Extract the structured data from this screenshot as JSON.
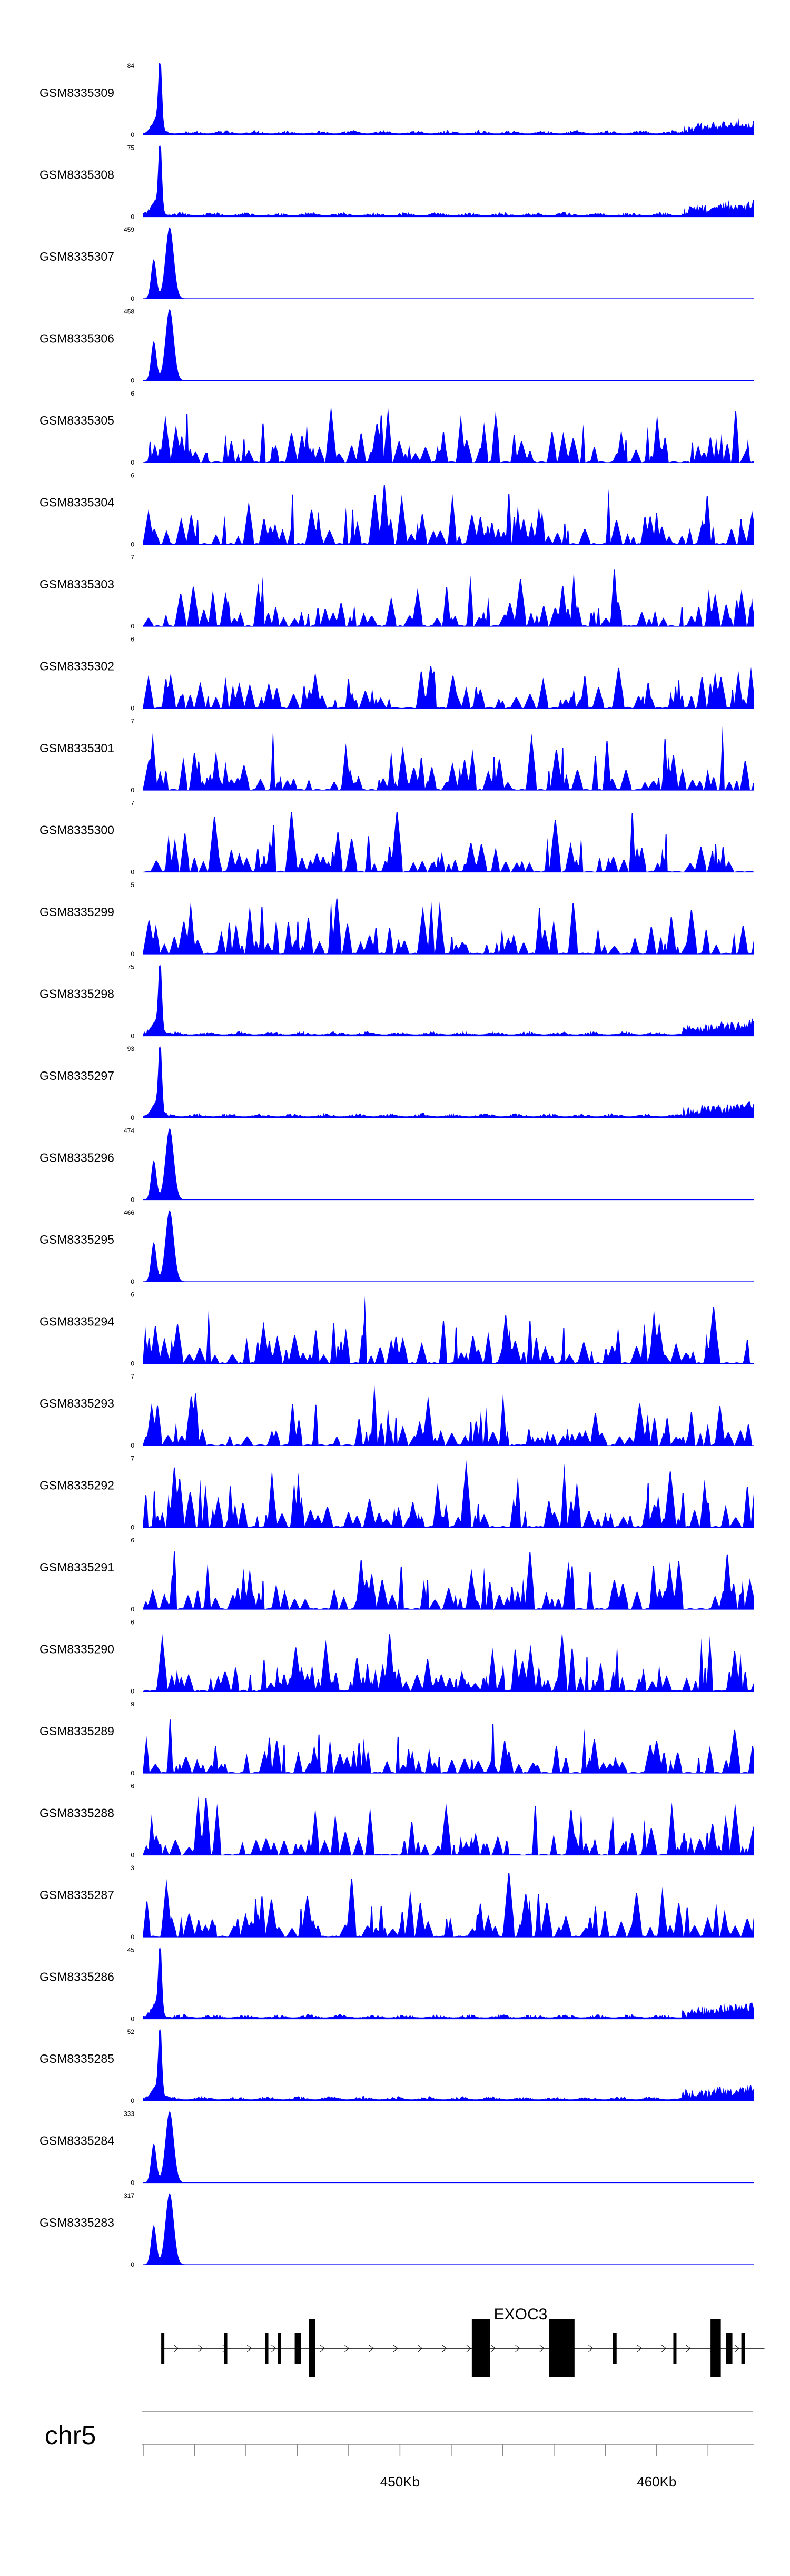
{
  "chart_data": {
    "type": "area",
    "chromosome": "chr5",
    "tracks": [
      {
        "name": "GSM8335309",
        "max": 84,
        "pattern": "sharp_peak_with_background",
        "color": "#0000ff"
      },
      {
        "name": "GSM8335308",
        "max": 75,
        "pattern": "sharp_peak_with_background",
        "color": "#0000ff"
      },
      {
        "name": "GSM8335307",
        "max": 459,
        "pattern": "double_peak_flat",
        "color": "#0000ff"
      },
      {
        "name": "GSM8335306",
        "max": 458,
        "pattern": "double_peak_flat",
        "color": "#0000ff"
      },
      {
        "name": "GSM8335305",
        "max": 6,
        "pattern": "noisy",
        "color": "#0000ff"
      },
      {
        "name": "GSM8335304",
        "max": 6,
        "pattern": "noisy",
        "color": "#0000ff"
      },
      {
        "name": "GSM8335303",
        "max": 7,
        "pattern": "noisy",
        "color": "#0000ff"
      },
      {
        "name": "GSM8335302",
        "max": 6,
        "pattern": "noisy",
        "color": "#0000ff"
      },
      {
        "name": "GSM8335301",
        "max": 7,
        "pattern": "noisy",
        "color": "#0000ff"
      },
      {
        "name": "GSM8335300",
        "max": 7,
        "pattern": "noisy",
        "color": "#0000ff"
      },
      {
        "name": "GSM8335299",
        "max": 5,
        "pattern": "noisy",
        "color": "#0000ff"
      },
      {
        "name": "GSM8335298",
        "max": 75,
        "pattern": "sharp_peak_with_background",
        "color": "#0000ff"
      },
      {
        "name": "GSM8335297",
        "max": 93,
        "pattern": "sharp_peak_with_background",
        "color": "#0000ff"
      },
      {
        "name": "GSM8335296",
        "max": 474,
        "pattern": "double_peak_flat",
        "color": "#0000ff"
      },
      {
        "name": "GSM8335295",
        "max": 466,
        "pattern": "double_peak_flat",
        "color": "#0000ff"
      },
      {
        "name": "GSM8335294",
        "max": 6,
        "pattern": "noisy",
        "color": "#0000ff"
      },
      {
        "name": "GSM8335293",
        "max": 7,
        "pattern": "noisy",
        "color": "#0000ff"
      },
      {
        "name": "GSM8335292",
        "max": 7,
        "pattern": "noisy",
        "color": "#0000ff"
      },
      {
        "name": "GSM8335291",
        "max": 6,
        "pattern": "noisy",
        "color": "#0000ff"
      },
      {
        "name": "GSM8335290",
        "max": 6,
        "pattern": "noisy",
        "color": "#0000ff"
      },
      {
        "name": "GSM8335289",
        "max": 9,
        "pattern": "noisy",
        "color": "#0000ff"
      },
      {
        "name": "GSM8335288",
        "max": 6,
        "pattern": "noisy",
        "color": "#0000ff"
      },
      {
        "name": "GSM8335287",
        "max": 3,
        "pattern": "noisy",
        "color": "#0000ff"
      },
      {
        "name": "GSM8335286",
        "max": 45,
        "pattern": "sharp_peak_with_background",
        "color": "#0000ff"
      },
      {
        "name": "GSM8335285",
        "max": 52,
        "pattern": "sharp_peak_with_background",
        "color": "#0000ff"
      },
      {
        "name": "GSM8335284",
        "max": 333,
        "pattern": "double_peak_flat",
        "color": "#0000ff"
      },
      {
        "name": "GSM8335283",
        "max": 317,
        "pattern": "double_peak_flat",
        "color": "#0000ff"
      }
    ],
    "ymin": 0,
    "gene": {
      "name": "EXOC3",
      "strand": "+",
      "start_kb": 440.7,
      "end_kb": 464.2,
      "exons_kb": [
        [
          440.7,
          440.82
        ],
        [
          443.15,
          443.27
        ],
        [
          444.75,
          444.87
        ],
        [
          445.25,
          445.33
        ],
        [
          445.9,
          446.15
        ],
        [
          446.45,
          446.7
        ],
        [
          452.8,
          453.5
        ],
        [
          455.8,
          456.8
        ],
        [
          458.3,
          458.44
        ],
        [
          460.65,
          460.77
        ],
        [
          462.1,
          462.5
        ],
        [
          462.7,
          462.95
        ],
        [
          463.3,
          463.45
        ]
      ],
      "thick_exons_kb": [
        [
          446.45,
          446.7
        ],
        [
          452.8,
          453.5
        ],
        [
          455.8,
          456.8
        ],
        [
          462.1,
          462.5
        ]
      ]
    },
    "x_axis": {
      "min_kb": 440.0,
      "max_kb": 463.8,
      "tick_labels": [
        "450Kb",
        "460Kb"
      ],
      "labeled_ticks_kb": [
        450,
        460
      ]
    },
    "tick_labels": [
      "0"
    ]
  },
  "colors": {
    "signal": "#0000ff",
    "gene": "#000000",
    "axis": "#888888"
  }
}
